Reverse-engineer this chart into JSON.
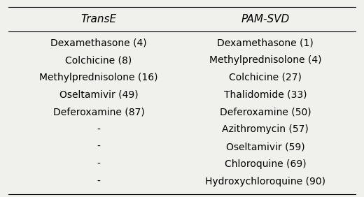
{
  "col1_header": "TransE",
  "col2_header": "PAM-SVD",
  "col1_data": [
    "Dexamethasone (4)",
    "Colchicine (8)",
    "Methylprednisolone (16)",
    "Oseltamivir (49)",
    "Deferoxamine (87)",
    "-",
    "-",
    "-",
    "-"
  ],
  "col2_data": [
    "Dexamethasone (1)",
    "Methylprednisolone (4)",
    "Colchicine (27)",
    "Thalidomide (33)",
    "Deferoxamine (50)",
    "Azithromycin (57)",
    "Oseltamivir (59)",
    "Chloroquine (69)",
    "Hydroxychloroquine (90)"
  ],
  "bg_color": "#f0f0ec",
  "text_color": "#000000",
  "header_fontsize": 11,
  "data_fontsize": 10
}
